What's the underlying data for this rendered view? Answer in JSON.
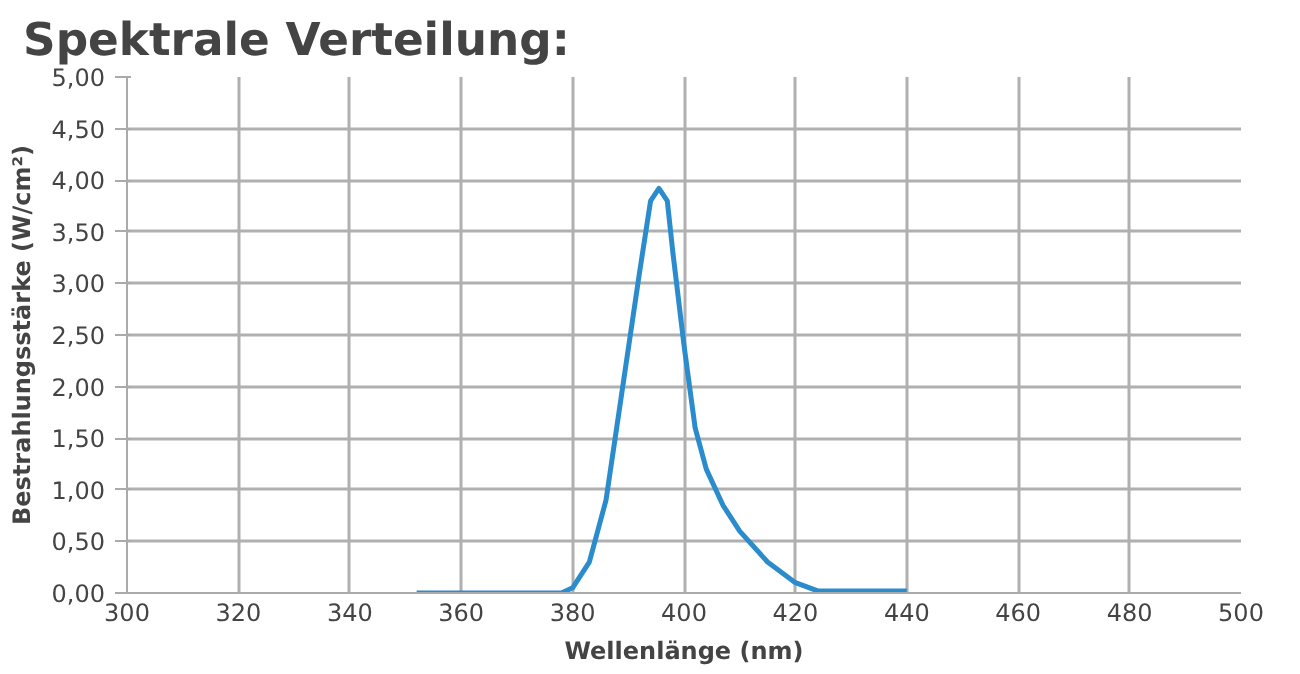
{
  "chart_data": {
    "type": "line",
    "title": "Spektrale Verteilung:",
    "xlabel": "Wellenlänge (nm)",
    "ylabel": "Bestrahlungsstärke (W/cm²)",
    "x": [
      352,
      370,
      378,
      380,
      383,
      386,
      389,
      392,
      394,
      395.5,
      397,
      398,
      400,
      402,
      404,
      407,
      410,
      415,
      420,
      424,
      430,
      440
    ],
    "series": [
      {
        "color": "#2a8ccc",
        "values": [
          0,
          0,
          0,
          0.05,
          0.3,
          0.9,
          2.0,
          3.1,
          3.8,
          3.92,
          3.8,
          3.3,
          2.4,
          1.6,
          1.2,
          0.85,
          0.6,
          0.3,
          0.1,
          0.02,
          0.02,
          0.02
        ]
      }
    ],
    "xlim": [
      300,
      500
    ],
    "xticks": [
      300,
      320,
      340,
      360,
      380,
      400,
      420,
      440,
      460,
      480,
      500
    ],
    "ylim": [
      0,
      5
    ],
    "yticks": [
      {
        "value": 0,
        "label": "0,00"
      },
      {
        "value": 0.5,
        "label": "0,50"
      },
      {
        "value": 1,
        "label": "1,00"
      },
      {
        "value": 1.5,
        "label": "1,50"
      },
      {
        "value": 2,
        "label": "2,00"
      },
      {
        "value": 2.5,
        "label": "2,50"
      },
      {
        "value": 3,
        "label": "3,00"
      },
      {
        "value": 3.5,
        "label": "3,50"
      },
      {
        "value": 4,
        "label": "4,00"
      },
      {
        "value": 4.5,
        "label": "4,50"
      },
      {
        "value": 5,
        "label": "5,00"
      }
    ],
    "grid": true,
    "marker": "none",
    "line_style": "solid"
  }
}
